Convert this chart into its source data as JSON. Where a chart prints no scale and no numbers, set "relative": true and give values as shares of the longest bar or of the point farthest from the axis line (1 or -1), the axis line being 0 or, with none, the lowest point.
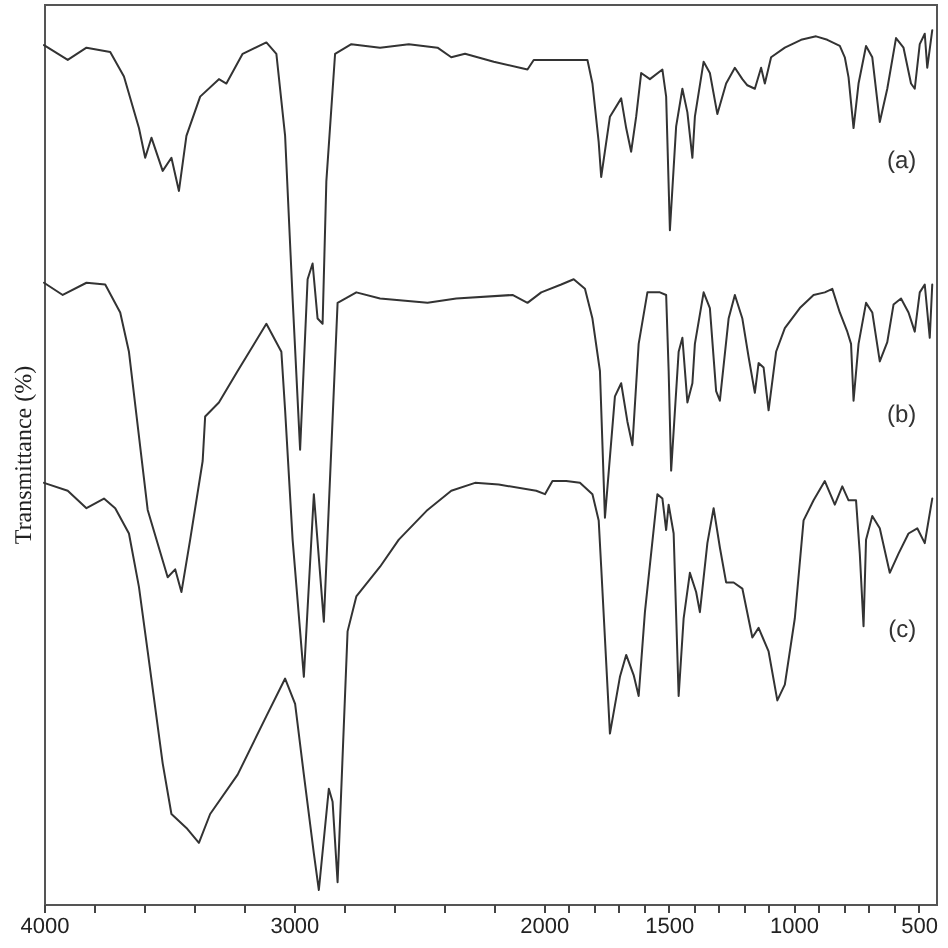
{
  "chart_data": {
    "type": "line",
    "ylabel": "Transmittance (%)",
    "relative": true,
    "xlim": [
      4000,
      430
    ],
    "xticks": [
      4000,
      {
        "value": 3800,
        "label": null
      },
      {
        "value": 3600,
        "label": null
      },
      {
        "value": 3400,
        "label": null
      },
      {
        "value": 3200,
        "label": null
      },
      3000,
      {
        "value": 2800,
        "label": null
      },
      {
        "value": 2600,
        "label": null
      },
      {
        "value": 2400,
        "label": null
      },
      {
        "value": 2200,
        "label": null
      },
      2000,
      {
        "value": 1900,
        "label": null
      },
      {
        "value": 1800,
        "label": null
      },
      {
        "value": 1700,
        "label": null
      },
      {
        "value": 1600,
        "label": null
      },
      1500,
      {
        "value": 1400,
        "label": null
      },
      {
        "value": 1300,
        "label": null
      },
      {
        "value": 1200,
        "label": null
      },
      {
        "value": 1100,
        "label": null
      },
      1000,
      {
        "value": 900,
        "label": null
      },
      {
        "value": 800,
        "label": null
      },
      {
        "value": 700,
        "label": null
      },
      {
        "value": 600,
        "label": null
      },
      500
    ],
    "series": [
      {
        "name": "(a)",
        "color": "#333333",
        "x": [
          4000,
          3905,
          3830,
          3735,
          3680,
          3620,
          3595,
          3570,
          3525,
          3490,
          3460,
          3430,
          3375,
          3300,
          3270,
          3205,
          3110,
          3070,
          3035,
          3005,
          2975,
          2945,
          2925,
          2905,
          2885,
          2870,
          2835,
          2770,
          2655,
          2540,
          2425,
          2370,
          2315,
          2200,
          2065,
          2040,
          1930,
          1825,
          1805,
          1780,
          1770,
          1735,
          1690,
          1670,
          1650,
          1630,
          1610,
          1575,
          1525,
          1510,
          1495,
          1470,
          1445,
          1425,
          1405,
          1395,
          1360,
          1335,
          1305,
          1270,
          1235,
          1205,
          1185,
          1155,
          1130,
          1115,
          1090,
          1035,
          970,
          910,
          865,
          815,
          795,
          780,
          760,
          740,
          710,
          685,
          655,
          625,
          590,
          560,
          530,
          515,
          495,
          475,
          465,
          445
        ],
        "values": [
          0.983,
          0.966,
          0.98,
          0.975,
          0.947,
          0.888,
          0.854,
          0.877,
          0.839,
          0.854,
          0.816,
          0.879,
          0.924,
          0.944,
          0.939,
          0.973,
          0.986,
          0.973,
          0.879,
          0.693,
          0.52,
          0.715,
          0.733,
          0.67,
          0.664,
          0.827,
          0.973,
          0.984,
          0.98,
          0.984,
          0.98,
          0.969,
          0.973,
          0.964,
          0.955,
          0.966,
          0.966,
          0.966,
          0.939,
          0.872,
          0.832,
          0.901,
          0.922,
          0.888,
          0.861,
          0.901,
          0.951,
          0.944,
          0.955,
          0.924,
          0.771,
          0.89,
          0.933,
          0.906,
          0.854,
          0.901,
          0.964,
          0.951,
          0.904,
          0.939,
          0.957,
          0.944,
          0.937,
          0.933,
          0.957,
          0.939,
          0.969,
          0.98,
          0.989,
          0.993,
          0.989,
          0.982,
          0.969,
          0.946,
          0.888,
          0.939,
          0.982,
          0.969,
          0.895,
          0.933,
          0.991,
          0.98,
          0.939,
          0.933,
          0.984,
          0.996,
          0.957,
          1
        ]
      },
      {
        "name": "(b)",
        "color": "#333333",
        "x": [
          4000,
          3925,
          3830,
          3755,
          3695,
          3660,
          3585,
          3505,
          3475,
          3450,
          3415,
          3365,
          3355,
          3300,
          3225,
          3110,
          3050,
          3035,
          3005,
          2960,
          2920,
          2880,
          2825,
          2750,
          2655,
          2465,
          2350,
          2125,
          2065,
          2010,
          1930,
          1880,
          1835,
          1805,
          1775,
          1755,
          1715,
          1690,
          1665,
          1645,
          1620,
          1585,
          1535,
          1510,
          1500,
          1490,
          1460,
          1445,
          1425,
          1405,
          1395,
          1360,
          1335,
          1310,
          1295,
          1260,
          1235,
          1205,
          1180,
          1155,
          1140,
          1120,
          1100,
          1070,
          1035,
          975,
          920,
          875,
          845,
          815,
          785,
          770,
          760,
          740,
          710,
          685,
          655,
          625,
          600,
          570,
          540,
          515,
          495,
          475,
          455,
          445
        ],
        "values": [
          0.711,
          0.697,
          0.711,
          0.709,
          0.677,
          0.632,
          0.451,
          0.374,
          0.383,
          0.357,
          0.417,
          0.507,
          0.558,
          0.574,
          0.61,
          0.664,
          0.632,
          0.565,
          0.417,
          0.26,
          0.469,
          0.323,
          0.688,
          0.7,
          0.693,
          0.688,
          0.693,
          0.697,
          0.688,
          0.7,
          0.709,
          0.715,
          0.704,
          0.67,
          0.61,
          0.442,
          0.581,
          0.596,
          0.552,
          0.525,
          0.641,
          0.7,
          0.7,
          0.697,
          0.61,
          0.496,
          0.632,
          0.648,
          0.574,
          0.596,
          0.641,
          0.7,
          0.682,
          0.587,
          0.576,
          0.67,
          0.697,
          0.67,
          0.626,
          0.585,
          0.619,
          0.614,
          0.565,
          0.632,
          0.659,
          0.682,
          0.697,
          0.7,
          0.704,
          0.677,
          0.655,
          0.641,
          0.576,
          0.641,
          0.688,
          0.677,
          0.621,
          0.643,
          0.686,
          0.693,
          0.677,
          0.655,
          0.7,
          0.709,
          0.648,
          0.709
        ]
      },
      {
        "name": "(c)",
        "color": "#333333",
        "x": [
          4000,
          3905,
          3830,
          3760,
          3715,
          3660,
          3620,
          3585,
          3525,
          3490,
          3430,
          3380,
          3335,
          3225,
          3110,
          3035,
          2995,
          2960,
          2920,
          2900,
          2860,
          2845,
          2825,
          2785,
          2750,
          2655,
          2580,
          2465,
          2370,
          2275,
          2180,
          2030,
          1995,
          1965,
          1910,
          1855,
          1805,
          1780,
          1770,
          1735,
          1695,
          1670,
          1640,
          1620,
          1595,
          1545,
          1525,
          1510,
          1500,
          1480,
          1460,
          1440,
          1415,
          1390,
          1375,
          1345,
          1320,
          1295,
          1270,
          1240,
          1205,
          1165,
          1140,
          1100,
          1065,
          1035,
          995,
          960,
          920,
          875,
          835,
          805,
          780,
          750,
          735,
          720,
          710,
          685,
          655,
          615,
          580,
          540,
          505,
          475,
          445
        ],
        "values": [
          0.482,
          0.473,
          0.453,
          0.464,
          0.453,
          0.424,
          0.363,
          0.289,
          0.161,
          0.103,
          0.087,
          0.07,
          0.103,
          0.148,
          0.215,
          0.258,
          0.229,
          0.148,
          0.058,
          0.016,
          0.132,
          0.117,
          0.025,
          0.312,
          0.352,
          0.386,
          0.417,
          0.451,
          0.473,
          0.482,
          0.48,
          0.473,
          0.469,
          0.484,
          0.484,
          0.482,
          0.469,
          0.439,
          0.386,
          0.195,
          0.26,
          0.285,
          0.262,
          0.238,
          0.334,
          0.469,
          0.464,
          0.428,
          0.457,
          0.424,
          0.238,
          0.327,
          0.379,
          0.357,
          0.334,
          0.413,
          0.453,
          0.408,
          0.368,
          0.368,
          0.361,
          0.305,
          0.316,
          0.289,
          0.233,
          0.251,
          0.327,
          0.439,
          0.462,
          0.484,
          0.457,
          0.478,
          0.462,
          0.462,
          0.401,
          0.318,
          0.417,
          0.444,
          0.43,
          0.379,
          0.401,
          0.424,
          0.43,
          0.413,
          0.464
        ]
      }
    ]
  }
}
